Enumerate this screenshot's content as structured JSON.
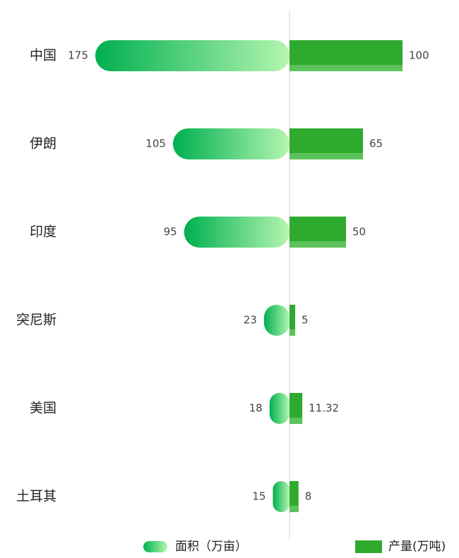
{
  "chart_data": {
    "type": "butterfly-bar",
    "categories": [
      "中国",
      "伊朗",
      "印度",
      "突尼斯",
      "美国",
      "土耳其"
    ],
    "series": [
      {
        "name": "面积（万亩）",
        "color": "#00b050",
        "values": [
          175,
          105,
          95,
          23,
          18,
          15
        ]
      },
      {
        "name": "产量(万吨)",
        "color": "#2eaa2e",
        "values": [
          100,
          65,
          50,
          5,
          11.32,
          8
        ]
      }
    ],
    "legend": "bottom"
  }
}
